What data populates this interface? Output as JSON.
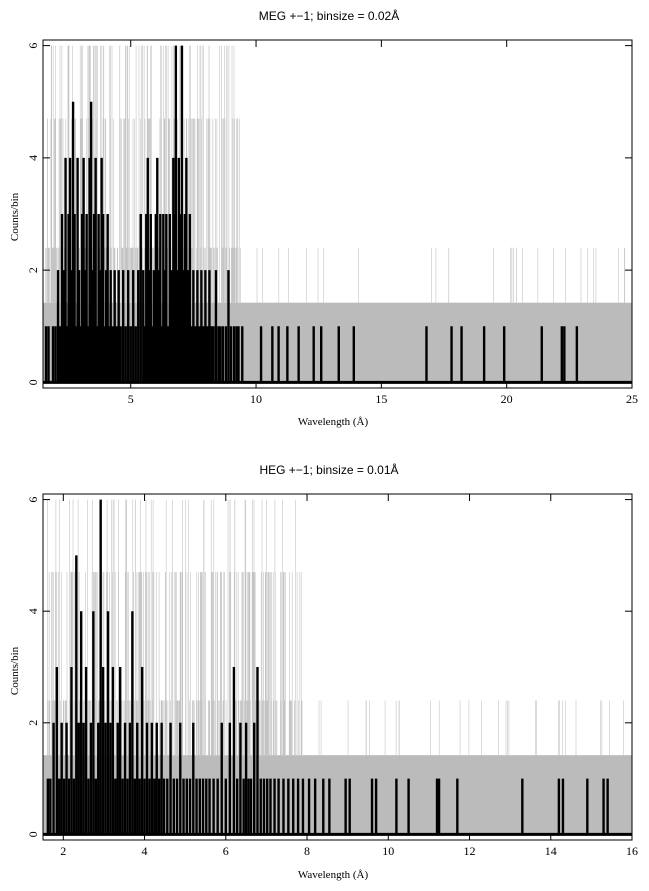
{
  "chart_data": [
    {
      "type": "histogram",
      "title": "MEG +−1; binsize = 0.02Å",
      "xlabel": "Wavelength (Å)",
      "ylabel": "Counts/bin",
      "xlim": [
        1.5,
        25
      ],
      "ylim": [
        -0.1,
        6.1
      ],
      "xticks": [
        5,
        10,
        15,
        20,
        25
      ],
      "yticks": [
        0,
        2,
        4,
        6
      ],
      "grid": false,
      "background_band": {
        "y_top": 1.42,
        "color": "#bbbbbb"
      },
      "background_spikes": {
        "x_range": [
          1.6,
          9.4
        ],
        "heights": [
          2.4,
          4.7,
          6.0
        ]
      },
      "series": [
        {
          "color": "#000000",
          "values": [
            [
              1.62,
              1
            ],
            [
              1.72,
              1
            ],
            [
              1.8,
              0
            ],
            [
              1.9,
              1
            ],
            [
              2.0,
              1
            ],
            [
              2.1,
              2
            ],
            [
              2.18,
              1
            ],
            [
              2.26,
              3
            ],
            [
              2.32,
              2
            ],
            [
              2.4,
              4
            ],
            [
              2.46,
              1
            ],
            [
              2.52,
              3
            ],
            [
              2.58,
              4
            ],
            [
              2.64,
              2
            ],
            [
              2.7,
              5
            ],
            [
              2.76,
              3
            ],
            [
              2.82,
              1
            ],
            [
              2.88,
              4
            ],
            [
              2.94,
              2
            ],
            [
              3.0,
              1
            ],
            [
              3.06,
              3
            ],
            [
              3.12,
              4
            ],
            [
              3.18,
              2
            ],
            [
              3.24,
              3
            ],
            [
              3.3,
              1
            ],
            [
              3.36,
              4
            ],
            [
              3.42,
              5
            ],
            [
              3.48,
              2
            ],
            [
              3.54,
              3
            ],
            [
              3.6,
              4
            ],
            [
              3.66,
              1
            ],
            [
              3.72,
              3
            ],
            [
              3.78,
              2
            ],
            [
              3.84,
              4
            ],
            [
              3.9,
              3
            ],
            [
              3.96,
              1
            ],
            [
              4.02,
              2
            ],
            [
              4.08,
              3
            ],
            [
              4.14,
              1
            ],
            [
              4.2,
              2
            ],
            [
              4.28,
              1
            ],
            [
              4.36,
              2
            ],
            [
              4.44,
              1
            ],
            [
              4.52,
              2
            ],
            [
              4.6,
              1
            ],
            [
              4.7,
              2
            ],
            [
              4.8,
              1
            ],
            [
              4.9,
              2
            ],
            [
              5.0,
              1
            ],
            [
              5.1,
              2
            ],
            [
              5.2,
              1
            ],
            [
              5.3,
              2
            ],
            [
              5.4,
              3
            ],
            [
              5.5,
              2
            ],
            [
              5.56,
              1
            ],
            [
              5.62,
              3
            ],
            [
              5.68,
              4
            ],
            [
              5.74,
              2
            ],
            [
              5.8,
              3
            ],
            [
              5.86,
              1
            ],
            [
              5.92,
              2
            ],
            [
              6.0,
              3
            ],
            [
              6.06,
              4
            ],
            [
              6.12,
              2
            ],
            [
              6.18,
              3
            ],
            [
              6.24,
              1
            ],
            [
              6.3,
              3
            ],
            [
              6.36,
              2
            ],
            [
              6.42,
              3
            ],
            [
              6.48,
              1
            ],
            [
              6.56,
              3
            ],
            [
              6.62,
              2
            ],
            [
              6.7,
              4
            ],
            [
              6.76,
              3
            ],
            [
              6.8,
              6
            ],
            [
              6.86,
              2
            ],
            [
              6.92,
              4
            ],
            [
              6.98,
              3
            ],
            [
              7.04,
              6
            ],
            [
              7.1,
              2
            ],
            [
              7.16,
              3
            ],
            [
              7.22,
              4
            ],
            [
              7.28,
              2
            ],
            [
              7.36,
              3
            ],
            [
              7.42,
              1
            ],
            [
              7.5,
              2
            ],
            [
              7.58,
              1
            ],
            [
              7.66,
              2
            ],
            [
              7.74,
              1
            ],
            [
              7.82,
              2
            ],
            [
              7.9,
              1
            ],
            [
              7.98,
              2
            ],
            [
              8.06,
              1
            ],
            [
              8.14,
              2
            ],
            [
              8.22,
              1
            ],
            [
              8.3,
              1
            ],
            [
              8.4,
              2
            ],
            [
              8.5,
              1
            ],
            [
              8.58,
              1
            ],
            [
              8.68,
              1
            ],
            [
              8.8,
              1
            ],
            [
              8.9,
              2
            ],
            [
              9.0,
              1
            ],
            [
              9.12,
              1
            ],
            [
              9.22,
              1
            ],
            [
              9.3,
              1
            ],
            [
              9.45,
              1
            ],
            [
              10.2,
              1
            ],
            [
              10.65,
              1
            ],
            [
              10.9,
              1
            ],
            [
              11.25,
              1
            ],
            [
              11.7,
              1
            ],
            [
              12.3,
              1
            ],
            [
              12.6,
              1
            ],
            [
              13.3,
              1
            ],
            [
              13.9,
              1
            ],
            [
              16.8,
              1
            ],
            [
              17.8,
              1
            ],
            [
              18.2,
              1
            ],
            [
              19.1,
              1
            ],
            [
              19.9,
              1
            ],
            [
              21.4,
              1
            ],
            [
              22.2,
              1
            ],
            [
              22.3,
              1
            ],
            [
              22.8,
              1
            ]
          ]
        }
      ]
    },
    {
      "type": "histogram",
      "title": "HEG +−1; binsize = 0.01Å",
      "xlabel": "Wavelength (Å)",
      "ylabel": "Counts/bin",
      "xlim": [
        1.5,
        16
      ],
      "ylim": [
        -0.1,
        6.1
      ],
      "xticks": [
        2,
        4,
        6,
        8,
        10,
        12,
        14,
        16
      ],
      "yticks": [
        0,
        2,
        4,
        6
      ],
      "grid": false,
      "background_band": {
        "y_top": 1.42,
        "color": "#bbbbbb"
      },
      "background_spikes": {
        "x_range": [
          1.6,
          7.9
        ],
        "heights": [
          2.4,
          4.7,
          6.0
        ]
      },
      "series": [
        {
          "color": "#000000",
          "values": [
            [
              1.62,
              1
            ],
            [
              1.68,
              1
            ],
            [
              1.76,
              2
            ],
            [
              1.84,
              3
            ],
            [
              1.9,
              1
            ],
            [
              1.96,
              2
            ],
            [
              2.02,
              1
            ],
            [
              2.08,
              2
            ],
            [
              2.14,
              1
            ],
            [
              2.2,
              3
            ],
            [
              2.26,
              1
            ],
            [
              2.32,
              5
            ],
            [
              2.38,
              2
            ],
            [
              2.44,
              4
            ],
            [
              2.5,
              2
            ],
            [
              2.56,
              3
            ],
            [
              2.62,
              1
            ],
            [
              2.68,
              2
            ],
            [
              2.74,
              4
            ],
            [
              2.8,
              1
            ],
            [
              2.86,
              2
            ],
            [
              2.92,
              6
            ],
            [
              2.98,
              3
            ],
            [
              3.04,
              2
            ],
            [
              3.1,
              4
            ],
            [
              3.16,
              2
            ],
            [
              3.22,
              3
            ],
            [
              3.28,
              1
            ],
            [
              3.34,
              2
            ],
            [
              3.4,
              3
            ],
            [
              3.46,
              1
            ],
            [
              3.52,
              2
            ],
            [
              3.58,
              1
            ],
            [
              3.64,
              2
            ],
            [
              3.7,
              4
            ],
            [
              3.76,
              1
            ],
            [
              3.82,
              2
            ],
            [
              3.88,
              1
            ],
            [
              3.94,
              3
            ],
            [
              4.0,
              1
            ],
            [
              4.06,
              2
            ],
            [
              4.12,
              1
            ],
            [
              4.18,
              2
            ],
            [
              4.24,
              1
            ],
            [
              4.3,
              2
            ],
            [
              4.36,
              1
            ],
            [
              4.42,
              2
            ],
            [
              4.48,
              1
            ],
            [
              4.56,
              1
            ],
            [
              4.64,
              2
            ],
            [
              4.72,
              1
            ],
            [
              4.8,
              1
            ],
            [
              4.88,
              2
            ],
            [
              4.96,
              1
            ],
            [
              5.04,
              1
            ],
            [
              5.12,
              1
            ],
            [
              5.2,
              2
            ],
            [
              5.28,
              1
            ],
            [
              5.36,
              1
            ],
            [
              5.44,
              1
            ],
            [
              5.52,
              1
            ],
            [
              5.6,
              1
            ],
            [
              5.7,
              1
            ],
            [
              5.8,
              1
            ],
            [
              5.9,
              2
            ],
            [
              6.0,
              1
            ],
            [
              6.1,
              2
            ],
            [
              6.2,
              3
            ],
            [
              6.28,
              1
            ],
            [
              6.36,
              2
            ],
            [
              6.44,
              1
            ],
            [
              6.5,
              2
            ],
            [
              6.56,
              1
            ],
            [
              6.62,
              1
            ],
            [
              6.7,
              2
            ],
            [
              6.78,
              3
            ],
            [
              6.86,
              1
            ],
            [
              6.94,
              1
            ],
            [
              7.02,
              1
            ],
            [
              7.1,
              1
            ],
            [
              7.2,
              1
            ],
            [
              7.3,
              1
            ],
            [
              7.42,
              1
            ],
            [
              7.54,
              1
            ],
            [
              7.66,
              1
            ],
            [
              7.78,
              1
            ],
            [
              7.9,
              1
            ],
            [
              8.05,
              1
            ],
            [
              8.2,
              1
            ],
            [
              8.4,
              1
            ],
            [
              8.55,
              1
            ],
            [
              8.95,
              1
            ],
            [
              9.05,
              1
            ],
            [
              9.6,
              1
            ],
            [
              9.7,
              1
            ],
            [
              10.2,
              1
            ],
            [
              10.5,
              1
            ],
            [
              11.2,
              1
            ],
            [
              11.25,
              1
            ],
            [
              11.7,
              1
            ],
            [
              13.3,
              1
            ],
            [
              14.2,
              1
            ],
            [
              14.3,
              1
            ],
            [
              14.9,
              1
            ],
            [
              15.3,
              1
            ],
            [
              15.4,
              1
            ]
          ]
        }
      ]
    }
  ]
}
